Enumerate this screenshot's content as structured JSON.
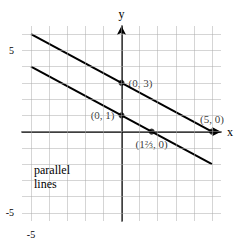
{
  "chart_data": {
    "type": "line",
    "xlim": [
      -5.5,
      5.5
    ],
    "ylim": [
      -5.5,
      6.5
    ],
    "xticks": [
      -5,
      {
        "value": -4,
        "label": ""
      },
      {
        "value": -3,
        "label": ""
      },
      {
        "value": -2,
        "label": ""
      },
      {
        "value": -1,
        "label": ""
      },
      {
        "value": 0,
        "label": ""
      },
      {
        "value": 1,
        "label": ""
      },
      {
        "value": 2,
        "label": ""
      },
      {
        "value": 3,
        "label": ""
      },
      {
        "value": 4,
        "label": ""
      },
      {
        "value": 5,
        "label": ""
      }
    ],
    "yticks": [
      -5,
      {
        "value": -4,
        "label": ""
      },
      {
        "value": -3,
        "label": ""
      },
      {
        "value": -2,
        "label": ""
      },
      {
        "value": -1,
        "label": ""
      },
      {
        "value": 0,
        "label": ""
      },
      {
        "value": 1,
        "label": ""
      },
      {
        "value": 2,
        "label": ""
      },
      {
        "value": 3,
        "label": ""
      },
      {
        "value": 4,
        "label": ""
      },
      5,
      {
        "value": 6,
        "label": ""
      }
    ],
    "xlabel": "x",
    "ylabel": "y",
    "grid": true,
    "series": [
      {
        "x": [
          -5,
          5
        ],
        "values": [
          4,
          -2
        ],
        "color": "black",
        "points": [
          [
            0,
            1
          ],
          [
            1.6667,
            0
          ]
        ],
        "point_labels": [
          "(0, 1)",
          "(1⅔, 0)"
        ]
      },
      {
        "x": [
          -5,
          5
        ],
        "values": [
          6,
          0
        ],
        "color": "black",
        "points": [
          [
            0,
            3
          ],
          [
            5,
            0
          ]
        ],
        "point_labels": [
          "(0, 3)",
          "(5, 0)"
        ]
      }
    ],
    "annotations": [
      "parallel\nlines"
    ]
  }
}
